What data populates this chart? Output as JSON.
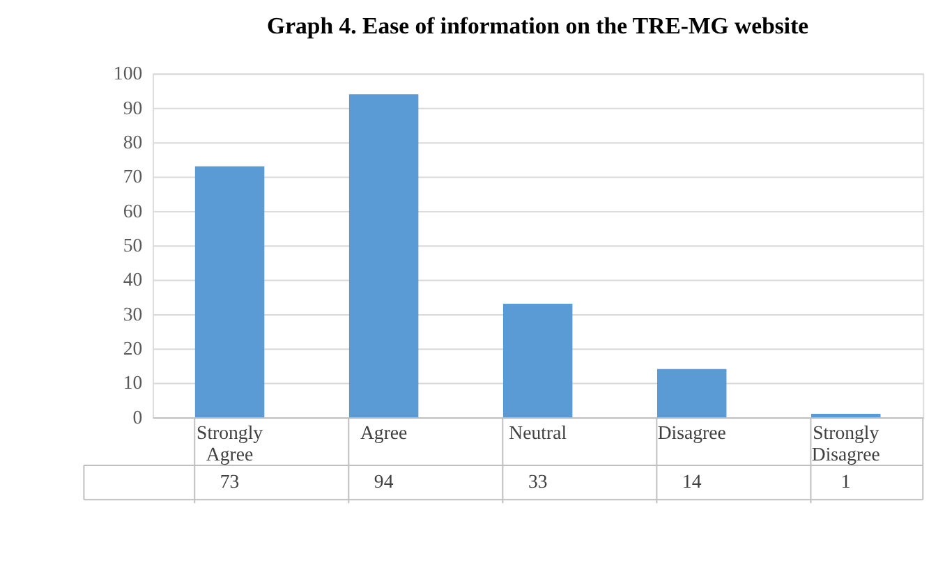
{
  "chart_data": {
    "type": "bar",
    "title": "Graph 4. Ease of information on the TRE-MG website",
    "categories": [
      "Strongly Agree",
      "Agree",
      "Neutral",
      "Disagree",
      "Strongly Disagree"
    ],
    "values": [
      73,
      94,
      33,
      14,
      1
    ],
    "color": "#5b9bd5",
    "ylim": [
      0,
      100
    ],
    "yticks": [
      0,
      10,
      20,
      30,
      40,
      50,
      60,
      70,
      80,
      90,
      100
    ],
    "grid": "y",
    "data_labels": true
  }
}
